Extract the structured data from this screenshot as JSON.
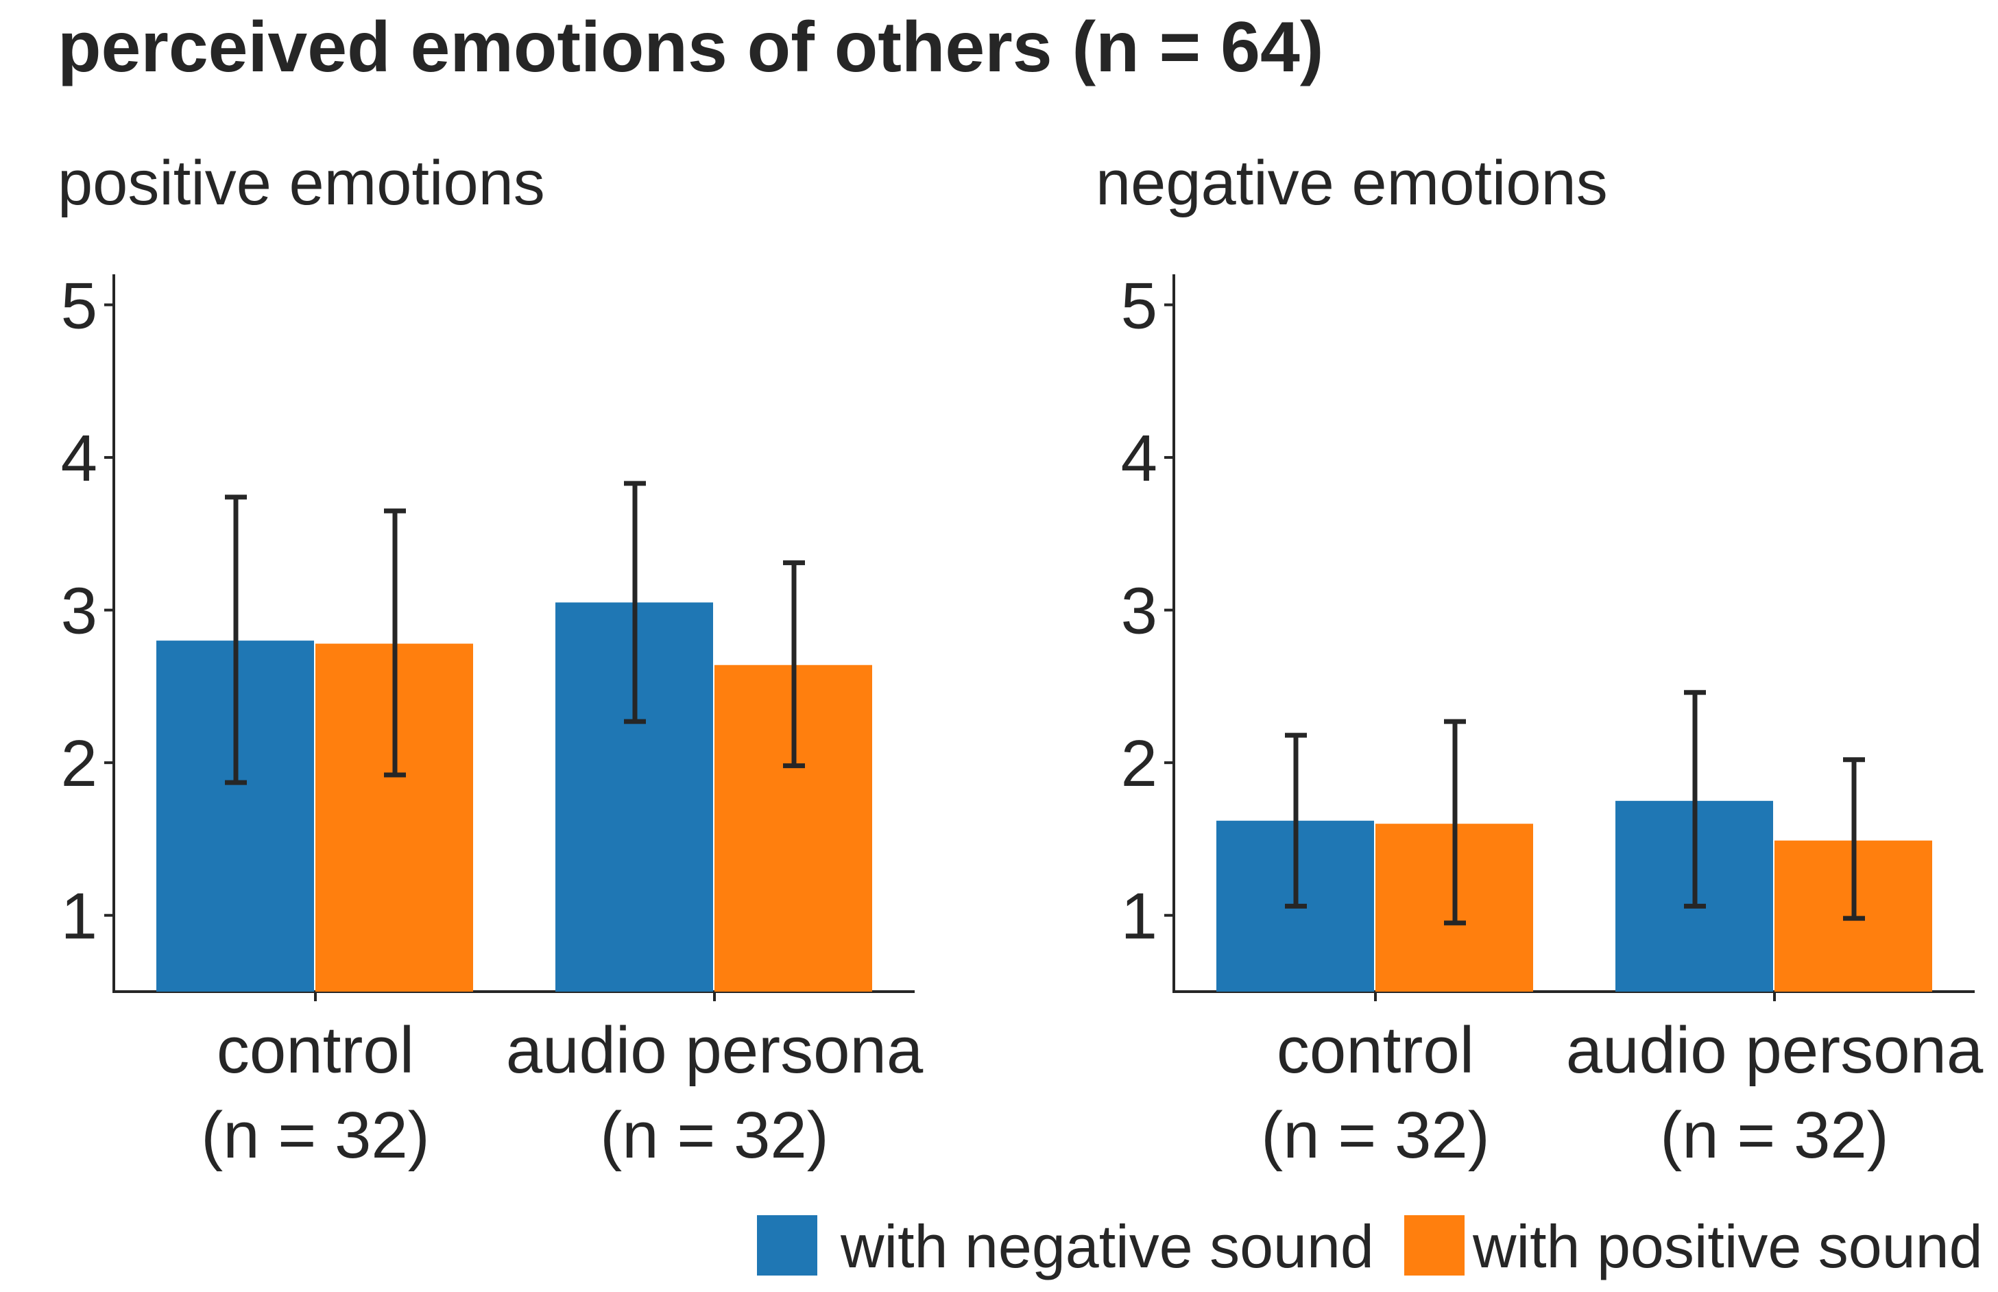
{
  "title": "perceived emotions of others (n = 64)",
  "colors": {
    "with_negative_sound": "#1f77b4",
    "with_positive_sound": "#ff7f0e",
    "error_bar": "#262626",
    "axis": "#262626"
  },
  "legend": {
    "placement": "bottom-right",
    "items": [
      {
        "label": "with negative sound",
        "color": "#1f77b4"
      },
      {
        "label": "with positive sound",
        "color": "#ff7f0e"
      }
    ]
  },
  "chart_data": [
    {
      "type": "bar",
      "title": "positive emotions",
      "xlabel": "",
      "ylabel": "",
      "ylim": [
        0.5,
        5.2
      ],
      "yticks": [
        1,
        2,
        3,
        4,
        5
      ],
      "grid": false,
      "categories": [
        [
          "control",
          "(n = 32)"
        ],
        [
          "audio persona",
          "(n = 32)"
        ]
      ],
      "series": [
        {
          "name": "with negative sound",
          "color": "#1f77b4",
          "values": [
            2.8,
            3.05
          ],
          "error_low": [
            1.87,
            2.27
          ],
          "error_high": [
            3.74,
            3.83
          ]
        },
        {
          "name": "with positive sound",
          "color": "#ff7f0e",
          "values": [
            2.78,
            2.64
          ],
          "error_low": [
            1.92,
            1.98
          ],
          "error_high": [
            3.65,
            3.31
          ]
        }
      ]
    },
    {
      "type": "bar",
      "title": "negative emotions",
      "xlabel": "",
      "ylabel": "",
      "ylim": [
        0.5,
        5.2
      ],
      "yticks": [
        1,
        2,
        3,
        4,
        5
      ],
      "grid": false,
      "categories": [
        [
          "control",
          "(n = 32)"
        ],
        [
          "audio persona",
          "(n = 32)"
        ]
      ],
      "series": [
        {
          "name": "with negative sound",
          "color": "#1f77b4",
          "values": [
            1.62,
            1.75
          ],
          "error_low": [
            1.06,
            1.06
          ],
          "error_high": [
            2.18,
            2.46
          ]
        },
        {
          "name": "with positive sound",
          "color": "#ff7f0e",
          "values": [
            1.6,
            1.49
          ],
          "error_low": [
            0.95,
            0.98
          ],
          "error_high": [
            2.27,
            2.02
          ]
        }
      ]
    }
  ]
}
